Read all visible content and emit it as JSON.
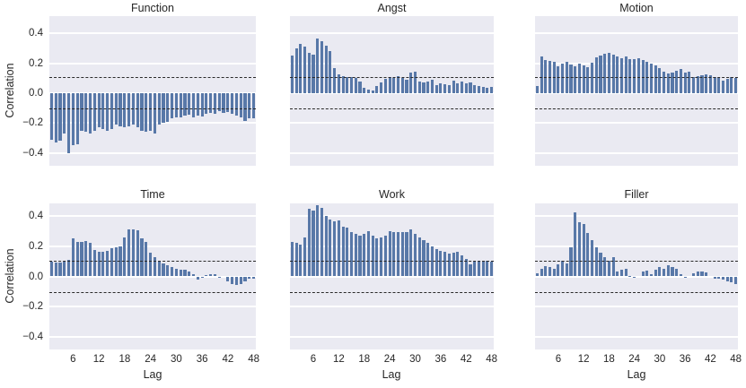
{
  "figure": {
    "ylabel": "Correlation",
    "xlabel": "Lag",
    "ytick_labels": [
      "0.4",
      "0.2",
      "0.0",
      "−0.2",
      "−0.4"
    ],
    "ytick_values": [
      0.4,
      0.2,
      0.0,
      -0.2,
      -0.4
    ],
    "xtick_values": [
      6,
      12,
      18,
      24,
      30,
      36,
      42,
      48
    ],
    "colors": {
      "bar": "#5878a8",
      "panel_background": "#eaeaf2",
      "gridline": "#ffffff",
      "dashed_line": "#2a2a2a",
      "text": "#262626"
    }
  },
  "chart_data": [
    {
      "type": "bar",
      "title": "Function",
      "xlabel": "Lag",
      "ylabel": "Correlation",
      "x_range": [
        1,
        48
      ],
      "ylim": [
        -0.487,
        0.516
      ],
      "significance_bounds": [
        0.105,
        -0.105
      ],
      "grid": true,
      "values": [
        -0.31,
        -0.33,
        -0.32,
        -0.27,
        -0.4,
        -0.35,
        -0.34,
        -0.25,
        -0.26,
        -0.27,
        -0.25,
        -0.23,
        -0.24,
        -0.25,
        -0.24,
        -0.21,
        -0.22,
        -0.23,
        -0.22,
        -0.21,
        -0.23,
        -0.25,
        -0.26,
        -0.25,
        -0.27,
        -0.21,
        -0.2,
        -0.19,
        -0.17,
        -0.16,
        -0.165,
        -0.15,
        -0.145,
        -0.16,
        -0.15,
        -0.155,
        -0.14,
        -0.13,
        -0.14,
        -0.12,
        -0.13,
        -0.125,
        -0.14,
        -0.15,
        -0.16,
        -0.185,
        -0.17,
        -0.17
      ]
    },
    {
      "type": "bar",
      "title": "Angst",
      "xlabel": "Lag",
      "ylabel": "Correlation",
      "x_range": [
        1,
        48
      ],
      "ylim": [
        -0.487,
        0.516
      ],
      "significance_bounds": [
        0.105,
        -0.105
      ],
      "grid": true,
      "values": [
        0.25,
        0.3,
        0.33,
        0.31,
        0.27,
        0.26,
        0.365,
        0.35,
        0.32,
        0.28,
        0.165,
        0.125,
        0.115,
        0.11,
        0.105,
        0.1,
        0.075,
        0.035,
        0.025,
        0.02,
        0.05,
        0.07,
        0.095,
        0.11,
        0.1,
        0.115,
        0.1,
        0.09,
        0.135,
        0.145,
        0.08,
        0.07,
        0.075,
        0.09,
        0.056,
        0.068,
        0.062,
        0.053,
        0.083,
        0.068,
        0.08,
        0.068,
        0.072,
        0.056,
        0.048,
        0.042,
        0.033,
        0.042
      ]
    },
    {
      "type": "bar",
      "title": "Motion",
      "xlabel": "Lag",
      "ylabel": "Correlation",
      "x_range": [
        1,
        48
      ],
      "ylim": [
        -0.487,
        0.516
      ],
      "significance_bounds": [
        0.105,
        -0.105
      ],
      "grid": true,
      "values": [
        0.05,
        0.245,
        0.22,
        0.215,
        0.21,
        0.18,
        0.2,
        0.21,
        0.19,
        0.18,
        0.195,
        0.185,
        0.175,
        0.205,
        0.24,
        0.25,
        0.265,
        0.27,
        0.26,
        0.245,
        0.235,
        0.245,
        0.23,
        0.225,
        0.235,
        0.22,
        0.21,
        0.2,
        0.185,
        0.165,
        0.145,
        0.13,
        0.135,
        0.15,
        0.16,
        0.135,
        0.145,
        0.105,
        0.115,
        0.12,
        0.125,
        0.12,
        0.11,
        0.1,
        0.085,
        0.095,
        0.105,
        0.1
      ]
    },
    {
      "type": "bar",
      "title": "Time",
      "xlabel": "Lag",
      "ylabel": "Correlation",
      "x_range": [
        1,
        48
      ],
      "ylim": [
        -0.482,
        0.482
      ],
      "significance_bounds": [
        0.105,
        -0.105
      ],
      "grid": true,
      "values": [
        0.1,
        0.09,
        0.09,
        0.1,
        0.11,
        0.25,
        0.23,
        0.225,
        0.235,
        0.22,
        0.175,
        0.165,
        0.165,
        0.17,
        0.185,
        0.195,
        0.2,
        0.255,
        0.31,
        0.31,
        0.305,
        0.25,
        0.23,
        0.155,
        0.13,
        0.105,
        0.085,
        0.075,
        0.065,
        0.05,
        0.045,
        0.045,
        0.033,
        0.012,
        -0.02,
        -0.005,
        0.008,
        0.012,
        0.012,
        -0.006,
        0.0,
        -0.03,
        -0.05,
        -0.055,
        -0.05,
        -0.03,
        -0.012,
        -0.015
      ]
    },
    {
      "type": "bar",
      "title": "Work",
      "xlabel": "Lag",
      "ylabel": "Correlation",
      "x_range": [
        1,
        48
      ],
      "ylim": [
        -0.482,
        0.482
      ],
      "significance_bounds": [
        0.105,
        -0.105
      ],
      "grid": true,
      "values": [
        0.23,
        0.22,
        0.21,
        0.26,
        0.445,
        0.435,
        0.47,
        0.45,
        0.4,
        0.375,
        0.365,
        0.37,
        0.33,
        0.32,
        0.29,
        0.28,
        0.27,
        0.28,
        0.3,
        0.27,
        0.25,
        0.26,
        0.27,
        0.3,
        0.295,
        0.29,
        0.295,
        0.29,
        0.31,
        0.28,
        0.26,
        0.24,
        0.22,
        0.2,
        0.18,
        0.17,
        0.16,
        0.15,
        0.155,
        0.16,
        0.14,
        0.115,
        0.08,
        0.095,
        0.095,
        0.105,
        0.105,
        0.1
      ]
    },
    {
      "type": "bar",
      "title": "Filler",
      "xlabel": "Lag",
      "ylabel": "Correlation",
      "x_range": [
        1,
        48
      ],
      "ylim": [
        -0.482,
        0.482
      ],
      "significance_bounds": [
        0.105,
        -0.105
      ],
      "grid": true,
      "values": [
        0.023,
        0.05,
        0.07,
        0.065,
        0.05,
        0.078,
        0.105,
        0.085,
        0.19,
        0.42,
        0.36,
        0.345,
        0.285,
        0.24,
        0.195,
        0.155,
        0.13,
        0.105,
        0.13,
        0.035,
        0.045,
        0.05,
        0.005,
        -0.01,
        0.0,
        0.03,
        0.04,
        0.012,
        0.045,
        0.065,
        0.05,
        0.072,
        0.065,
        0.05,
        0.012,
        -0.01,
        0.0,
        0.02,
        0.035,
        0.03,
        0.025,
        0.0,
        -0.012,
        -0.015,
        -0.02,
        -0.03,
        -0.04,
        -0.05
      ]
    }
  ]
}
